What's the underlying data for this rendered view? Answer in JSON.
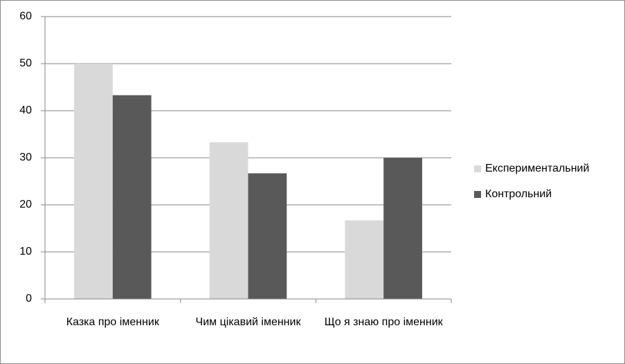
{
  "chart_data": {
    "type": "bar",
    "categories": [
      "Казка про іменник",
      "Чим цікавий іменник",
      "Що я знаю про іменник"
    ],
    "series": [
      {
        "name": "Експериментальний",
        "color": "#d9d9d9",
        "values": [
          50,
          33.3,
          16.7
        ]
      },
      {
        "name": "Контрольний",
        "color": "#595959",
        "values": [
          43.3,
          26.7,
          30
        ]
      }
    ],
    "ylim": [
      0,
      60
    ],
    "yticks": [
      0,
      10,
      20,
      30,
      40,
      50,
      60
    ],
    "grid": true,
    "legend": "right"
  }
}
